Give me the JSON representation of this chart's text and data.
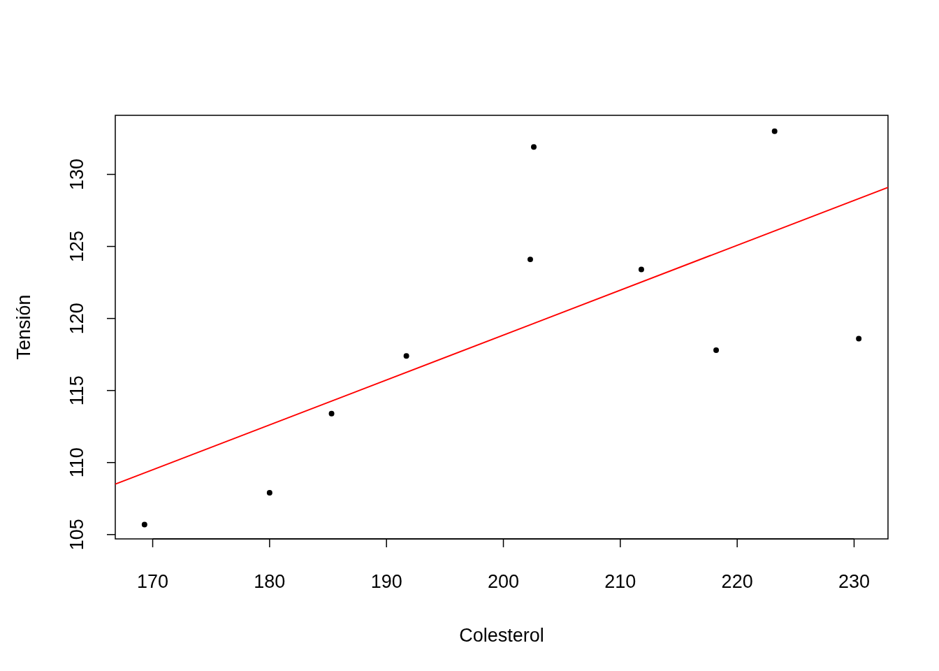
{
  "chart_data": {
    "type": "scatter",
    "xlabel": "Colesterol",
    "ylabel": "Tensión",
    "xlim": [
      166.8,
      232.9
    ],
    "ylim": [
      104.7,
      134.1
    ],
    "xticks": [
      170,
      180,
      190,
      200,
      210,
      220,
      230
    ],
    "yticks": [
      105,
      110,
      115,
      120,
      125,
      130
    ],
    "grid": false,
    "series": [
      {
        "marker": "circle",
        "color": "#000000",
        "x": [
          169.3,
          180.0,
          185.3,
          191.7,
          202.3,
          202.6,
          211.8,
          218.2,
          223.2,
          230.4
        ],
        "values": [
          105.7,
          107.9,
          113.4,
          117.4,
          124.1,
          131.9,
          123.4,
          117.8,
          133.0,
          118.6
        ]
      },
      {
        "type": "line",
        "marker": "none",
        "color": "#ff0000",
        "x": [
          166.8,
          232.9
        ],
        "values": [
          108.5,
          129.1
        ]
      }
    ]
  }
}
